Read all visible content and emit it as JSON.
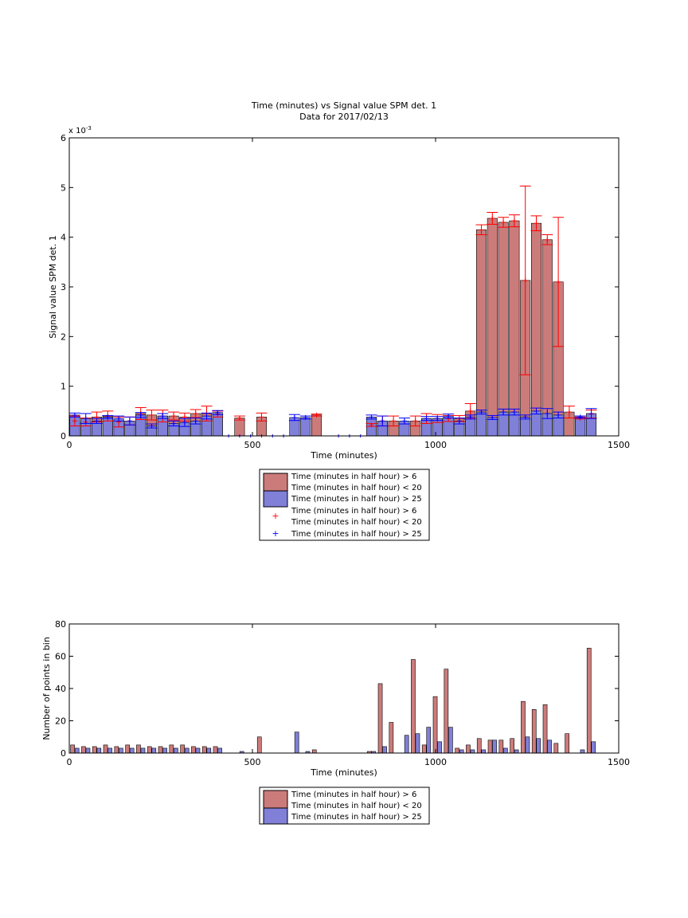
{
  "chart_data": [
    {
      "type": "bar",
      "title": "Time (minutes) vs Signal value SPM det. 1",
      "subtitle": "Data for 2017/02/13",
      "xlabel": "Time (minutes)",
      "ylabel": "Signal value SPM det. 1",
      "exponent_label": "x 10",
      "exponent_power": "-3",
      "xlim": [
        0,
        1500
      ],
      "ylim": [
        0,
        6
      ],
      "xticks": [
        "0",
        "500",
        "1000",
        "1500"
      ],
      "yticks": [
        "0",
        "1",
        "2",
        "3",
        "4",
        "5",
        "6"
      ],
      "grid": false,
      "legend_position": "below plot",
      "legend": [
        "Time (minutes in half hour) > 6",
        "Time (minutes in half hour) < 20",
        "Time (minutes in half hour) > 25",
        "Time (minutes in half hour) > 6",
        "Time (minutes in half hour) < 20",
        "Time (minutes in half hour) > 25"
      ],
      "colors": {
        "red_bar": "#cc7b7b",
        "blue_bar": "#8080d8",
        "red_marker": "#ff0000",
        "blue_marker": "#0000ff"
      },
      "series": [
        {
          "values_unit": "x 10^-3",
          "points": [
            {
              "x": 15,
              "y": 0.3,
              "err": 0.1
            },
            {
              "x": 45,
              "y": 0.28,
              "err": 0.08
            },
            {
              "x": 75,
              "y": 0.38,
              "err": 0.1
            },
            {
              "x": 105,
              "y": 0.4,
              "err": 0.1
            },
            {
              "x": 135,
              "y": 0.28,
              "err": 0.1
            },
            {
              "x": 165,
              "y": 0.3,
              "err": 0.08
            },
            {
              "x": 195,
              "y": 0.45,
              "err": 0.12
            },
            {
              "x": 225,
              "y": 0.42,
              "err": 0.1
            },
            {
              "x": 255,
              "y": 0.4,
              "err": 0.12
            },
            {
              "x": 285,
              "y": 0.4,
              "err": 0.08
            },
            {
              "x": 315,
              "y": 0.38,
              "err": 0.08
            },
            {
              "x": 345,
              "y": 0.45,
              "err": 0.08
            },
            {
              "x": 375,
              "y": 0.45,
              "err": 0.15
            },
            {
              "x": 405,
              "y": 0.44,
              "err": 0.06
            },
            {
              "x": 465,
              "y": 0.36,
              "err": 0.04
            },
            {
              "x": 525,
              "y": 0.38,
              "err": 0.08
            },
            {
              "x": 675,
              "y": 0.42,
              "err": 0.02
            },
            {
              "x": 825,
              "y": 0.22,
              "err": 0.03
            },
            {
              "x": 855,
              "y": 0.3,
              "err": 0.1
            },
            {
              "x": 885,
              "y": 0.3,
              "err": 0.1
            },
            {
              "x": 945,
              "y": 0.3,
              "err": 0.1
            },
            {
              "x": 975,
              "y": 0.35,
              "err": 0.1
            },
            {
              "x": 1005,
              "y": 0.35,
              "err": 0.08
            },
            {
              "x": 1035,
              "y": 0.35,
              "err": 0.06
            },
            {
              "x": 1065,
              "y": 0.35,
              "err": 0.06
            },
            {
              "x": 1095,
              "y": 0.5,
              "err": 0.15
            },
            {
              "x": 1125,
              "y": 4.15,
              "err": 0.1
            },
            {
              "x": 1155,
              "y": 4.38,
              "err": 0.12
            },
            {
              "x": 1185,
              "y": 4.3,
              "err": 0.1
            },
            {
              "x": 1215,
              "y": 4.33,
              "err": 0.12
            },
            {
              "x": 1245,
              "y": 3.13,
              "err": 1.9
            },
            {
              "x": 1275,
              "y": 4.28,
              "err": 0.15
            },
            {
              "x": 1305,
              "y": 3.95,
              "err": 0.1
            },
            {
              "x": 1335,
              "y": 3.1,
              "err": 1.3
            },
            {
              "x": 1365,
              "y": 0.48,
              "err": 0.12
            },
            {
              "x": 1395,
              "y": 0.36,
              "err": 0.02
            },
            {
              "x": 1425,
              "y": 0.44,
              "err": 0.08
            }
          ]
        },
        {
          "values_unit": "x 10^-3",
          "points": [
            {
              "x": 15,
              "y": 0.42,
              "err": 0.04
            },
            {
              "x": 45,
              "y": 0.35,
              "err": 0.1
            },
            {
              "x": 75,
              "y": 0.3,
              "err": 0.05
            },
            {
              "x": 105,
              "y": 0.38,
              "err": 0.03
            },
            {
              "x": 135,
              "y": 0.35,
              "err": 0.05
            },
            {
              "x": 165,
              "y": 0.3,
              "err": 0.08
            },
            {
              "x": 195,
              "y": 0.42,
              "err": 0.05
            },
            {
              "x": 225,
              "y": 0.2,
              "err": 0.04
            },
            {
              "x": 255,
              "y": 0.4,
              "err": 0.05
            },
            {
              "x": 285,
              "y": 0.25,
              "err": 0.05
            },
            {
              "x": 315,
              "y": 0.27,
              "err": 0.08
            },
            {
              "x": 345,
              "y": 0.3,
              "err": 0.06
            },
            {
              "x": 375,
              "y": 0.4,
              "err": 0.06
            },
            {
              "x": 405,
              "y": 0.47,
              "err": 0.04
            },
            {
              "x": 615,
              "y": 0.37,
              "err": 0.06
            },
            {
              "x": 645,
              "y": 0.37,
              "err": 0.03
            },
            {
              "x": 825,
              "y": 0.38,
              "err": 0.04
            },
            {
              "x": 855,
              "y": 0.3,
              "err": 0.1
            },
            {
              "x": 915,
              "y": 0.3,
              "err": 0.06
            },
            {
              "x": 975,
              "y": 0.35,
              "err": 0.04
            },
            {
              "x": 1005,
              "y": 0.35,
              "err": 0.04
            },
            {
              "x": 1035,
              "y": 0.4,
              "err": 0.04
            },
            {
              "x": 1065,
              "y": 0.3,
              "err": 0.06
            },
            {
              "x": 1095,
              "y": 0.38,
              "err": 0.04
            },
            {
              "x": 1125,
              "y": 0.48,
              "err": 0.04
            },
            {
              "x": 1155,
              "y": 0.37,
              "err": 0.04
            },
            {
              "x": 1185,
              "y": 0.48,
              "err": 0.06
            },
            {
              "x": 1215,
              "y": 0.48,
              "err": 0.06
            },
            {
              "x": 1245,
              "y": 0.38,
              "err": 0.04
            },
            {
              "x": 1275,
              "y": 0.5,
              "err": 0.06
            },
            {
              "x": 1305,
              "y": 0.45,
              "err": 0.1
            },
            {
              "x": 1335,
              "y": 0.42,
              "err": 0.06
            },
            {
              "x": 1395,
              "y": 0.38,
              "err": 0.02
            },
            {
              "x": 1425,
              "y": 0.45,
              "err": 0.1
            }
          ]
        }
      ],
      "zero_markers": [
        435,
        465,
        495,
        525,
        555,
        585,
        735,
        765,
        795
      ]
    },
    {
      "type": "bar",
      "xlabel": "Time (minutes)",
      "ylabel": "Number of points in bin",
      "xlim": [
        0,
        1500
      ],
      "ylim": [
        0,
        80
      ],
      "xticks": [
        "0",
        "500",
        "1000",
        "1500"
      ],
      "yticks": [
        "0",
        "20",
        "40",
        "60",
        "80"
      ],
      "grid": false,
      "legend_position": "below plot",
      "legend": [
        "Time (minutes in half hour) > 6",
        "Time (minutes in half hour) < 20",
        "Time (minutes in half hour) > 25"
      ],
      "categories": [
        15,
        45,
        75,
        105,
        135,
        165,
        195,
        225,
        255,
        285,
        315,
        345,
        375,
        405,
        435,
        465,
        495,
        525,
        555,
        585,
        615,
        645,
        675,
        705,
        735,
        765,
        795,
        825,
        855,
        885,
        915,
        945,
        975,
        1005,
        1035,
        1065,
        1095,
        1125,
        1155,
        1185,
        1215,
        1245,
        1275,
        1305,
        1335,
        1365,
        1395,
        1425
      ],
      "series": [
        {
          "values": [
            5,
            4,
            4,
            5,
            4,
            5,
            5,
            4,
            4,
            5,
            5,
            4,
            4,
            4,
            0,
            0,
            0,
            10,
            0,
            0,
            0,
            0,
            2,
            0,
            0,
            0,
            0,
            1,
            43,
            19,
            0,
            58,
            5,
            35,
            52,
            3,
            5,
            9,
            8,
            8,
            9,
            32,
            27,
            30,
            6,
            12,
            0,
            65
          ]
        },
        {
          "values": [
            3,
            3,
            3,
            3,
            3,
            3,
            3,
            3,
            3,
            3,
            3,
            3,
            3,
            3,
            0,
            1,
            0,
            0,
            0,
            0,
            13,
            1,
            0,
            0,
            0,
            0,
            0,
            1,
            4,
            0,
            11,
            12,
            16,
            7,
            16,
            2,
            2,
            2,
            8,
            3,
            2,
            10,
            9,
            8,
            0,
            0,
            2,
            7
          ]
        }
      ]
    }
  ]
}
